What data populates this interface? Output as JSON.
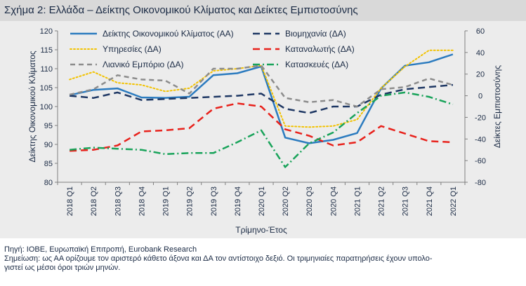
{
  "title": "Σχήμα 2: Ελλάδα – Δείκτης Οικονομικού Κλίματος και Δείκτες Εμπιστοσύνης",
  "source": "Πηγή: ΙΟΒΕ, Ευρωπαϊκή Επιτροπή, Eurobank Research",
  "note_line1": "Σημείωση: ως ΑΑ ορίζουμε τον αριστερό κάθετο άξονα και ΔΑ τον αντίστοιχο δεξιό. Οι τριμηνιαίες παρατηρήσεις έχουν υπολο-",
  "note_line2": "γιστεί ως μέσοι όροι τριών μηνών.",
  "chart_data": {
    "type": "line",
    "xlabel": "Τρίμηνο-Έτος",
    "ylabel_left": "Δείκτης Οικονομικού Κλίματος",
    "ylabel_right": "Δείκτες Εμπιστοσύνης",
    "ylim_left": [
      80,
      120
    ],
    "ylim_right": [
      -80,
      60
    ],
    "yticks_left": [
      80,
      85,
      90,
      95,
      100,
      105,
      110,
      115,
      120
    ],
    "yticks_right": [
      -80,
      -60,
      -40,
      -20,
      0,
      20,
      40,
      60
    ],
    "grid": false,
    "legend_position": "top",
    "categories": [
      "2018 Q1",
      "2018 Q2",
      "2018 Q3",
      "2018 Q4",
      "2019 Q1",
      "2019 Q2",
      "2019 Q3",
      "2019 Q4",
      "2020 Q1",
      "2020 Q2",
      "2020 Q3",
      "2020 Q4",
      "2021 Q1",
      "2021 Q2",
      "2021 Q3",
      "2021 Q4",
      "2022 Q1"
    ],
    "series": [
      {
        "name": "Δείκτης Οικονομικού Κλίματος (ΑΑ)",
        "axis": "left",
        "color": "#2b7bbf",
        "dash": "solid",
        "values": [
          103.0,
          104.4,
          104.8,
          102.4,
          102.3,
          102.6,
          108.3,
          108.8,
          110.6,
          91.8,
          90.3,
          91.2,
          93.0,
          104.8,
          110.8,
          111.7,
          113.8
        ]
      },
      {
        "name": "Βιομηχανία (ΔΑ)",
        "axis": "right",
        "color": "#1f3864",
        "dash": "longdash",
        "values": [
          0,
          -2,
          3,
          -4,
          -3,
          -2,
          -1,
          0,
          2,
          -12,
          -16,
          -10,
          -10,
          1,
          6,
          8,
          10
        ]
      },
      {
        "name": "Υπηρεσίες (ΔΑ)",
        "axis": "right",
        "color": "#f2c200",
        "dash": "dot",
        "values": [
          15,
          22,
          12,
          10,
          4,
          7,
          23,
          25,
          28,
          -28,
          -29,
          -28,
          -22,
          7,
          27,
          42,
          42
        ]
      },
      {
        "name": "Καταναλωτής (ΔΑ)",
        "axis": "right",
        "color": "#e8221c",
        "dash": "longdash",
        "values": [
          -51,
          -50,
          -46,
          -33,
          -32,
          -30,
          -12,
          -7,
          -10,
          -31,
          -37,
          -46,
          -43,
          -28,
          -35,
          -42,
          -43
        ]
      },
      {
        "name": "Λιανικό Εμπόριο (ΔΑ)",
        "axis": "right",
        "color": "#8c8c8c",
        "dash": "dash",
        "values": [
          1,
          6,
          19,
          15,
          14,
          2,
          25,
          25,
          28,
          -2,
          -6,
          -4,
          -10,
          6,
          8,
          16,
          10
        ]
      },
      {
        "name": "Κατασκευές (ΔΑ)",
        "axis": "right",
        "color": "#19a35a",
        "dash": "dashdot",
        "values": [
          -50,
          -48,
          -49,
          -50,
          -54,
          -53,
          -53,
          -43,
          -32,
          -66,
          -44,
          -34,
          -16,
          0,
          3,
          -1,
          -8
        ]
      }
    ]
  }
}
